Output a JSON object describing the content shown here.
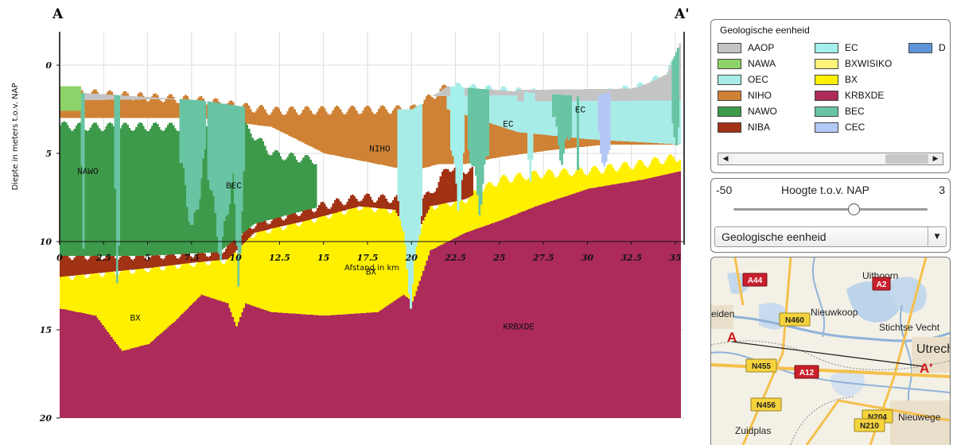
{
  "section": {
    "start_label": "A",
    "end_label": "A'",
    "y_axis_label": "Diepte in meters t.o.v. NAP",
    "x_axis_label": "Afstand in km",
    "y_ticks": [
      "0",
      "5",
      "10",
      "15",
      "20"
    ],
    "y_tick_values": [
      0,
      -5,
      -10,
      -15,
      -20
    ],
    "x_ticks": [
      "0",
      "2.5",
      "5",
      "7.5",
      "10",
      "12.5",
      "15",
      "17.5",
      "20",
      "22.5",
      "25",
      "27.5",
      "30",
      "32.5",
      "35"
    ],
    "x_tick_values": [
      0,
      2.5,
      5,
      7.5,
      10,
      12.5,
      15,
      17.5,
      20,
      22.5,
      25,
      27.5,
      30,
      32.5,
      35
    ],
    "unit_labels": [
      {
        "text": "NAWO",
        "km": 1.6,
        "depth": -6
      },
      {
        "text": "BEC",
        "km": 9.9,
        "depth": -6.8
      },
      {
        "text": "NIHO",
        "km": 18.2,
        "depth": -4.7
      },
      {
        "text": "EC",
        "km": 25.5,
        "depth": -3.3
      },
      {
        "text": "EC",
        "km": 29.6,
        "depth": -2.5
      },
      {
        "text": "BX",
        "km": 17.7,
        "depth": -11.7
      },
      {
        "text": "BX",
        "km": 4.3,
        "depth": -14.3
      },
      {
        "text": "KRBXDE",
        "km": 26.1,
        "depth": -14.8
      }
    ]
  },
  "legend": {
    "title": "Geologische eenheid",
    "items": [
      {
        "code": "AAOP",
        "color": "#c4c4c4"
      },
      {
        "code": "NAWA",
        "color": "#8ed36a"
      },
      {
        "code": "OEC",
        "color": "#a8ece8"
      },
      {
        "code": "NIHO",
        "color": "#cf8235"
      },
      {
        "code": "NAWO",
        "color": "#3d9a4b"
      },
      {
        "code": "NIBA",
        "color": "#a13214"
      },
      {
        "code": "EC",
        "color": "#a4f0ec"
      },
      {
        "code": "BXWISIKO",
        "color": "#fff27a"
      },
      {
        "code": "BX",
        "color": "#fff000"
      },
      {
        "code": "KRBXDE",
        "color": "#ac2b5a"
      },
      {
        "code": "BEC",
        "color": "#69c4a3"
      },
      {
        "code": "CEC",
        "color": "#b3c8f4"
      },
      {
        "code": "D",
        "color": "#5d96d8"
      }
    ]
  },
  "height_slider": {
    "min_label": "-50",
    "title": "Hoogte t.o.v. NAP",
    "max_label": "3",
    "value_fraction": 0.62
  },
  "unit_dropdown": {
    "selected": "Geologische eenheid"
  },
  "map": {
    "place_names": [
      "Uithoorn",
      "Nieuwkoop",
      "Stichtse Vecht",
      "Utrech",
      "Nieuwege",
      "Zuidplas",
      "eiden"
    ],
    "road_shields": [
      "A44",
      "A2",
      "N460",
      "N455",
      "A12",
      "N204",
      "N456",
      "N210"
    ],
    "section_start": "A",
    "section_end": "A'"
  }
}
